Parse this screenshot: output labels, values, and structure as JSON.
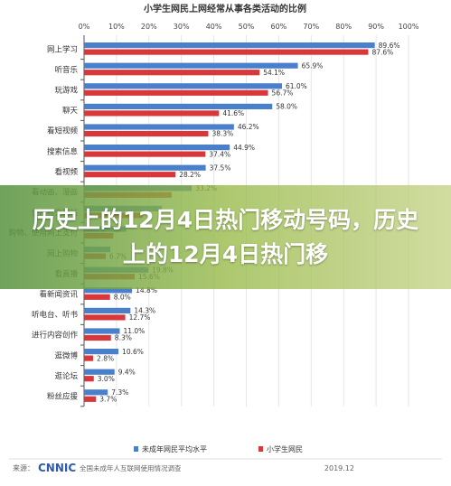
{
  "chart_data": {
    "type": "bar",
    "orientation": "horizontal",
    "title": "小学生网民上网经常从事各类活动的比例",
    "x_ticks": [
      "0%",
      "10%",
      "20%",
      "30%",
      "40%",
      "50%",
      "60%",
      "70%",
      "80%",
      "90%",
      "100%"
    ],
    "xlim": [
      0,
      100
    ],
    "grid": true,
    "legend_position": "bottom",
    "categories": [
      "网上学习",
      "听音乐",
      "玩游戏",
      "聊天",
      "看短视频",
      "搜索信息",
      "看视频",
      "看动画、漫画",
      "使用社交网站",
      "购物、使用网上支付",
      "网上购物",
      "看直播",
      "看新闻资讯",
      "听电台、听书",
      "进行内容创作",
      "逛微博",
      "逛论坛",
      "粉丝应援"
    ],
    "series": [
      {
        "name": "未成年网民平均水平",
        "color": "#4a7fcb",
        "values": [
          89.6,
          65.9,
          61.0,
          58.0,
          46.2,
          44.9,
          37.5,
          33.2,
          24.0,
          13.0,
          8.1,
          19.8,
          14.8,
          14.3,
          11.0,
          10.6,
          9.4,
          7.3
        ]
      },
      {
        "name": "小学生网民",
        "color": "#d9383b",
        "values": [
          87.6,
          54.1,
          56.7,
          41.6,
          38.3,
          37.4,
          28.2,
          27.0,
          18.0,
          9.0,
          6.7,
          15.6,
          8.0,
          12.7,
          8.3,
          2.8,
          3.0,
          3.7
        ]
      }
    ],
    "value_labels": [
      [
        "89.6%",
        "65.9%",
        "61.0%",
        "58.0%",
        "46.2%",
        "44.9%",
        "37.5%",
        "33.2%",
        "",
        "",
        "",
        "19.8%",
        "14.8%",
        "14.3%",
        "11.0%",
        "10.6%",
        "9.4%",
        "7.3%"
      ],
      [
        "87.6%",
        "54.1%",
        "56.7%",
        "41.6%",
        "38.3%",
        "37.4%",
        "28.2%",
        "",
        "",
        "",
        "6.7%",
        "15.6%",
        "8.0%",
        "12.7%",
        "8.3%",
        "2.8%",
        "3.0%",
        "3.7%"
      ]
    ]
  },
  "source": "来源：",
  "brand": "CNNIC",
  "footnote": "全国未成年人互联网使用情况调查",
  "date": "2019.12",
  "banner_text": "历史上的12月4日热门移动号码，历史上的12月4日热门移",
  "colors": {
    "axis": "#555555",
    "grid": "#e6e6e6",
    "brand": "#2e5aa8"
  }
}
